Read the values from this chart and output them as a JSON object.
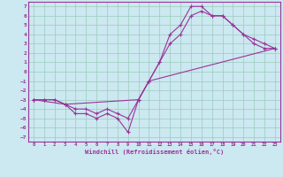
{
  "title": "",
  "xlabel": "Windchill (Refroidissement éolien,°C)",
  "bg_color": "#cce8f0",
  "grid_color": "#99ccbb",
  "line_color": "#993399",
  "xlim": [
    -0.5,
    23.5
  ],
  "ylim": [
    -7.5,
    7.5
  ],
  "xticks": [
    0,
    1,
    2,
    3,
    4,
    5,
    6,
    7,
    8,
    9,
    10,
    11,
    12,
    13,
    14,
    15,
    16,
    17,
    18,
    19,
    20,
    21,
    22,
    23
  ],
  "yticks": [
    -7,
    -6,
    -5,
    -4,
    -3,
    -2,
    -1,
    0,
    1,
    2,
    3,
    4,
    5,
    6,
    7
  ],
  "line1_x": [
    0,
    1,
    2,
    3,
    4,
    5,
    6,
    7,
    8,
    9,
    10,
    11,
    12,
    13,
    14,
    15,
    16,
    17,
    18,
    19,
    20,
    21,
    22,
    23
  ],
  "line1_y": [
    -3,
    -3,
    -3,
    -3.5,
    -4.5,
    -4.5,
    -5,
    -4.5,
    -5,
    -6.5,
    -3,
    -1,
    1,
    4,
    5,
    7,
    7,
    6,
    6,
    5,
    4,
    3,
    2.5,
    2.5
  ],
  "line2_x": [
    0,
    1,
    2,
    3,
    4,
    5,
    6,
    7,
    8,
    9,
    10,
    11,
    12,
    13,
    14,
    15,
    16,
    17,
    18,
    19,
    20,
    21,
    22,
    23
  ],
  "line2_y": [
    -3,
    -3,
    -3,
    -3.5,
    -4,
    -4,
    -4.5,
    -4,
    -4.5,
    -5,
    -3,
    -1,
    1,
    3,
    4,
    6,
    6.5,
    6,
    6,
    5,
    4,
    3.5,
    3,
    2.5
  ],
  "line3_x": [
    0,
    3,
    10,
    11,
    23
  ],
  "line3_y": [
    -3,
    -3.5,
    -3,
    -1,
    2.5
  ]
}
